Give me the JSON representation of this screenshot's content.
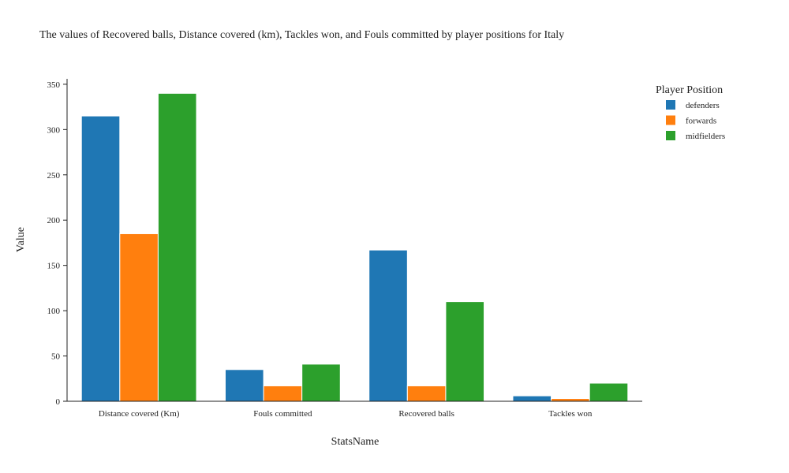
{
  "chart_data": {
    "type": "bar",
    "title": "The values of Recovered balls, Distance covered (km), Tackles won, and Fouls committed by player positions for Italy",
    "xlabel": "StatsName",
    "ylabel": "Value",
    "categories": [
      "Distance covered (Km)",
      "Fouls committed",
      "Recovered balls",
      "Tackles won"
    ],
    "series": [
      {
        "name": "defenders",
        "color": "#1f77b4",
        "values": [
          315,
          35,
          167,
          6
        ]
      },
      {
        "name": "forwards",
        "color": "#ff7f0e",
        "values": [
          185,
          17,
          17,
          3
        ]
      },
      {
        "name": "midfielders",
        "color": "#2ca02c",
        "values": [
          340,
          41,
          110,
          20
        ]
      }
    ],
    "ylim": [
      0,
      356
    ],
    "yticks": [
      0,
      50,
      100,
      150,
      200,
      250,
      300,
      350
    ],
    "legend": {
      "title": "Player Position",
      "placement": "top-right"
    },
    "grid": false
  }
}
